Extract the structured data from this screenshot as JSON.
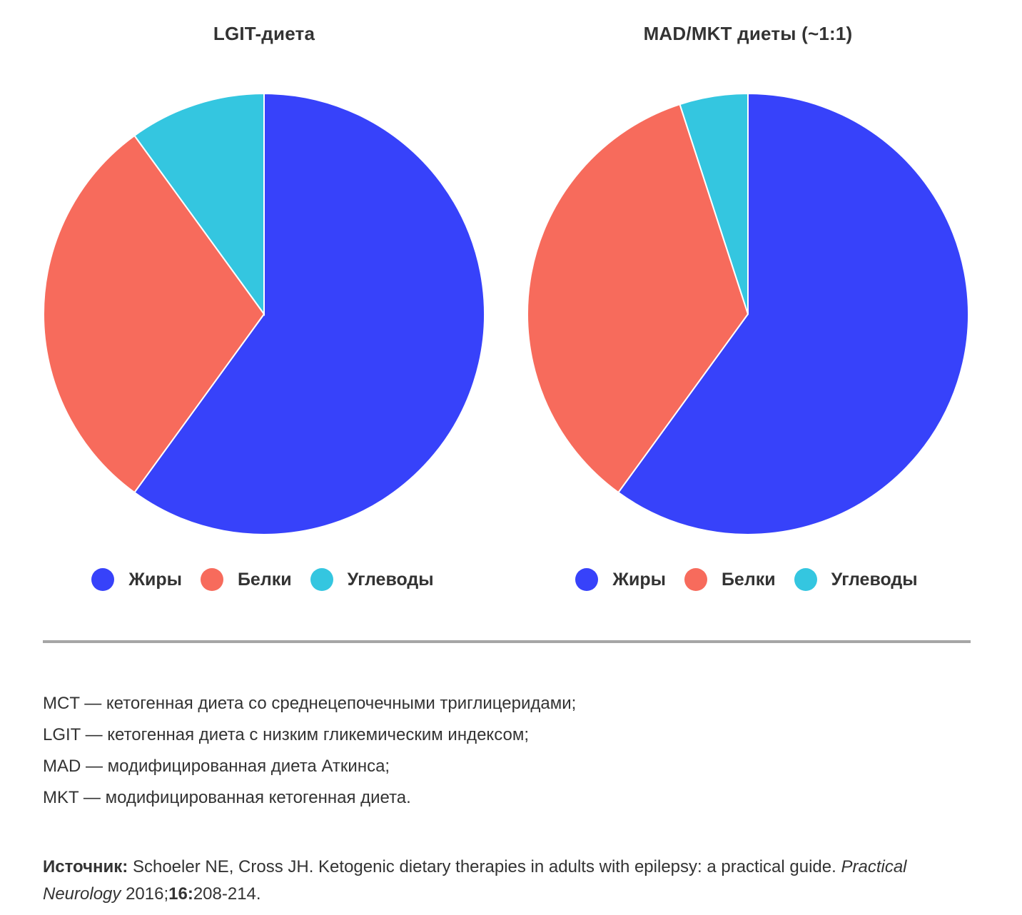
{
  "colors": {
    "fat": "#3742fa",
    "protein": "#f76b5c",
    "carbs": "#34c6e0",
    "divider": "#a6a6a6",
    "text": "#333333"
  },
  "chart_data": [
    {
      "type": "pie",
      "title": "LGIT-диета",
      "slices": [
        {
          "label": "Жиры",
          "value": 60,
          "color": "#3742fa"
        },
        {
          "label": "Белки",
          "value": 30,
          "color": "#f76b5c"
        },
        {
          "label": "Углеводы",
          "value": 10,
          "color": "#34c6e0"
        }
      ],
      "legend_position": "bottom"
    },
    {
      "type": "pie",
      "title": "MAD/MKT диеты (~1:1)",
      "slices": [
        {
          "label": "Жиры",
          "value": 60,
          "color": "#3742fa"
        },
        {
          "label": "Белки",
          "value": 35,
          "color": "#f76b5c"
        },
        {
          "label": "Углеводы",
          "value": 5,
          "color": "#34c6e0"
        }
      ],
      "legend_position": "bottom"
    }
  ],
  "notes": [
    "MCT — кетогенная диета со среднецепочечными триглицеридами;",
    "LGIT — кетогенная диета с низким гликемическим индексом;",
    "MAD — модифицированная диета Аткинса;",
    "MKT — модифицированная кетогенная диета."
  ],
  "source": {
    "label": "Источник:",
    "text": " Schoeler NE, Cross JH. Ketogenic dietary therapies in adults with epilepsy: a practical guide. ",
    "journal": "Practical Neurology",
    "year": " 2016;",
    "volume": "16:",
    "pages": "208-214."
  }
}
